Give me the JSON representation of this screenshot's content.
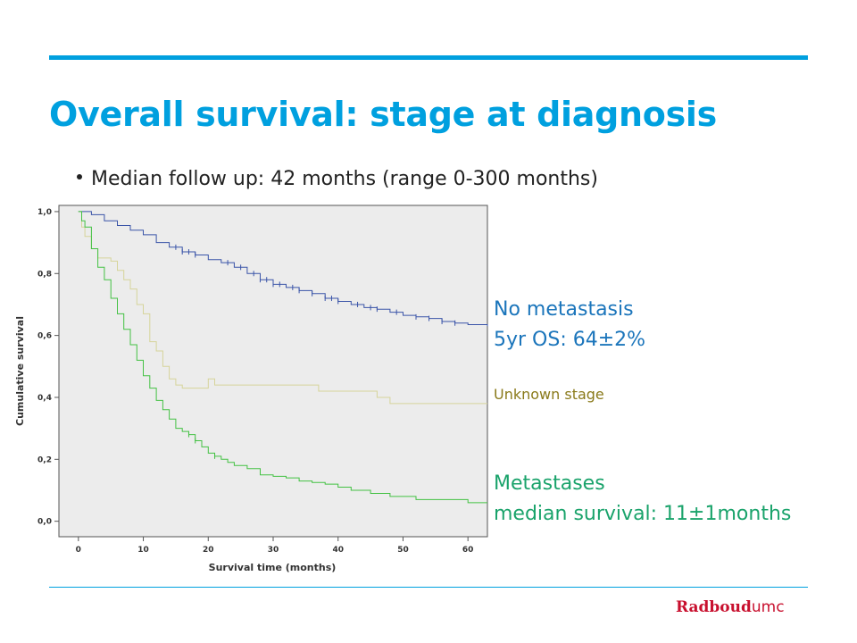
{
  "slide": {
    "title": "Overall survival: stage at diagnosis",
    "bullet": "Median follow up: 42 months (range 0-300 months)"
  },
  "annotations": {
    "no_metastasis": [
      "No metastasis",
      "5yr OS: 64±2%"
    ],
    "unknown_stage": "Unknown stage",
    "metastases": [
      "Metastases",
      "median survival: 11±1months"
    ]
  },
  "logo": {
    "brand": "Radboud",
    "suffix": "umc"
  },
  "colors": {
    "accent": "#00a0df",
    "no_metastasis": "#3a54a8",
    "unknown_stage": "#d6d49a",
    "metastases": "#43c143",
    "plot_bg": "#ececec"
  },
  "chart_data": {
    "type": "line",
    "xlabel": "Survival time (months)",
    "ylabel": "Cumulative survival",
    "xlim": [
      -3,
      63
    ],
    "ylim": [
      -0.05,
      1.02
    ],
    "x_ticks": [
      0,
      10,
      20,
      30,
      40,
      50,
      60
    ],
    "x_tick_labels": [
      "0",
      "10",
      "20",
      "30",
      "40",
      "50",
      "60"
    ],
    "y_ticks": [
      0,
      0.2,
      0.4,
      0.6,
      0.8,
      1.0
    ],
    "y_tick_labels": [
      "0,0",
      "0,2",
      "0,4",
      "0,6",
      "0,8",
      "1,0"
    ],
    "grid": false,
    "series": [
      {
        "key": "no_metastasis",
        "color": "#3a54a8",
        "points": [
          [
            0,
            1.0
          ],
          [
            2,
            0.99
          ],
          [
            4,
            0.97
          ],
          [
            6,
            0.955
          ],
          [
            8,
            0.94
          ],
          [
            10,
            0.925
          ],
          [
            12,
            0.9
          ],
          [
            14,
            0.885
          ],
          [
            16,
            0.87
          ],
          [
            18,
            0.86
          ],
          [
            20,
            0.845
          ],
          [
            22,
            0.835
          ],
          [
            24,
            0.82
          ],
          [
            26,
            0.8
          ],
          [
            28,
            0.78
          ],
          [
            30,
            0.765
          ],
          [
            32,
            0.755
          ],
          [
            34,
            0.745
          ],
          [
            36,
            0.735
          ],
          [
            38,
            0.72
          ],
          [
            40,
            0.71
          ],
          [
            42,
            0.7
          ],
          [
            44,
            0.69
          ],
          [
            46,
            0.685
          ],
          [
            48,
            0.675
          ],
          [
            50,
            0.665
          ],
          [
            52,
            0.66
          ],
          [
            54,
            0.655
          ],
          [
            56,
            0.645
          ],
          [
            58,
            0.64
          ],
          [
            60,
            0.635
          ],
          [
            63,
            0.63
          ]
        ],
        "censored_x": [
          15,
          16,
          17,
          18,
          23,
          25,
          27,
          28,
          29,
          30,
          31,
          33,
          34,
          36,
          38,
          39,
          40,
          43,
          45,
          46,
          49,
          52,
          54,
          56,
          58
        ]
      },
      {
        "key": "unknown_stage",
        "color": "#d6d49a",
        "points": [
          [
            0,
            1.0
          ],
          [
            0.5,
            0.95
          ],
          [
            1,
            0.92
          ],
          [
            2,
            0.88
          ],
          [
            3,
            0.85
          ],
          [
            4,
            0.85
          ],
          [
            5,
            0.84
          ],
          [
            6,
            0.81
          ],
          [
            7,
            0.78
          ],
          [
            8,
            0.75
          ],
          [
            9,
            0.7
          ],
          [
            10,
            0.67
          ],
          [
            11,
            0.58
          ],
          [
            12,
            0.55
          ],
          [
            13,
            0.5
          ],
          [
            14,
            0.46
          ],
          [
            15,
            0.44
          ],
          [
            16,
            0.43
          ],
          [
            18,
            0.43
          ],
          [
            20,
            0.46
          ],
          [
            21,
            0.44
          ],
          [
            22,
            0.44
          ],
          [
            25,
            0.44
          ],
          [
            30,
            0.44
          ],
          [
            35,
            0.44
          ],
          [
            36,
            0.44
          ],
          [
            37,
            0.42
          ],
          [
            45,
            0.42
          ],
          [
            46,
            0.4
          ],
          [
            48,
            0.38
          ],
          [
            63,
            0.38
          ]
        ],
        "censored_x": []
      },
      {
        "key": "metastases",
        "color": "#43c143",
        "points": [
          [
            0,
            1.0
          ],
          [
            0.5,
            0.97
          ],
          [
            1,
            0.95
          ],
          [
            2,
            0.88
          ],
          [
            3,
            0.82
          ],
          [
            4,
            0.78
          ],
          [
            5,
            0.72
          ],
          [
            6,
            0.67
          ],
          [
            7,
            0.62
          ],
          [
            8,
            0.57
          ],
          [
            9,
            0.52
          ],
          [
            10,
            0.47
          ],
          [
            11,
            0.43
          ],
          [
            12,
            0.39
          ],
          [
            13,
            0.36
          ],
          [
            14,
            0.33
          ],
          [
            15,
            0.3
          ],
          [
            16,
            0.29
          ],
          [
            17,
            0.28
          ],
          [
            18,
            0.26
          ],
          [
            19,
            0.24
          ],
          [
            20,
            0.22
          ],
          [
            21,
            0.21
          ],
          [
            22,
            0.2
          ],
          [
            23,
            0.19
          ],
          [
            24,
            0.18
          ],
          [
            26,
            0.17
          ],
          [
            28,
            0.15
          ],
          [
            30,
            0.145
          ],
          [
            32,
            0.14
          ],
          [
            34,
            0.13
          ],
          [
            36,
            0.125
          ],
          [
            38,
            0.12
          ],
          [
            40,
            0.11
          ],
          [
            42,
            0.1
          ],
          [
            45,
            0.09
          ],
          [
            48,
            0.08
          ],
          [
            52,
            0.07
          ],
          [
            56,
            0.07
          ],
          [
            60,
            0.06
          ],
          [
            63,
            0.06
          ]
        ],
        "censored_x": [
          17,
          18,
          21
        ]
      }
    ]
  }
}
